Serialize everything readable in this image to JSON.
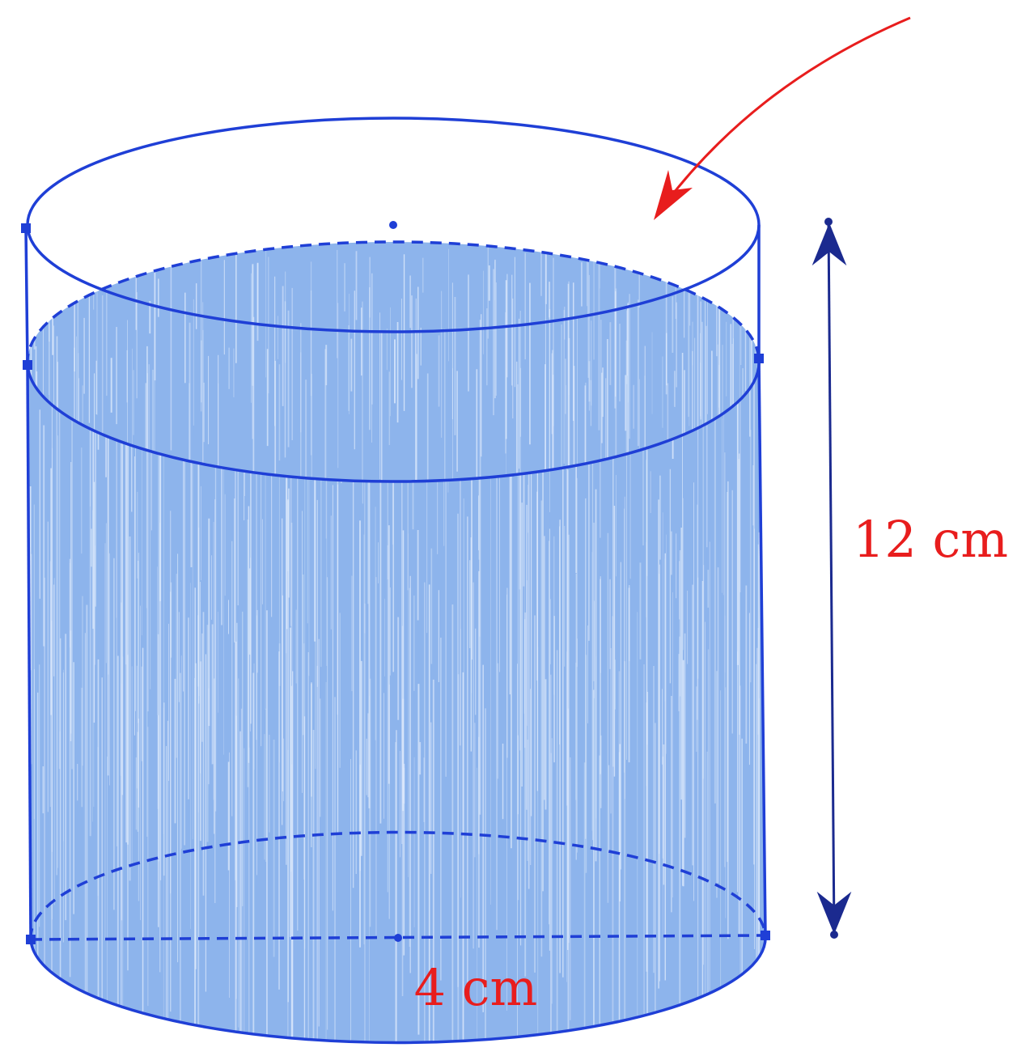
{
  "diagram": {
    "labels": {
      "height": "12 cm",
      "diameter": "4 cm"
    },
    "colors": {
      "outline": "#1f3fd6",
      "water_fill": "#8db4ec",
      "water_streak": "#dbe8fb",
      "dimension_arrow": "#1b2a8f",
      "label": "#e81d1d",
      "pointer_arrow": "#e81d1d"
    }
  }
}
